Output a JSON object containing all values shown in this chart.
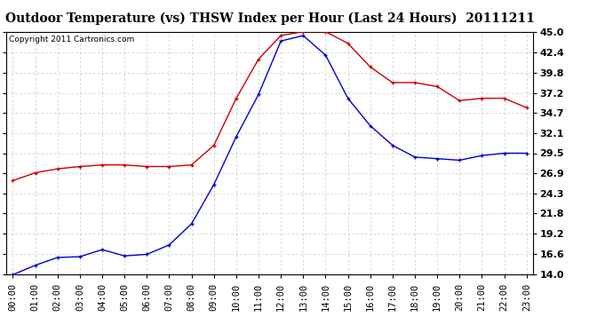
{
  "title": "Outdoor Temperature (vs) THSW Index per Hour (Last 24 Hours)  20111211",
  "copyright": "Copyright 2011 Cartronics.com",
  "hours": [
    "00:00",
    "01:00",
    "02:00",
    "03:00",
    "04:00",
    "05:00",
    "06:00",
    "07:00",
    "08:00",
    "09:00",
    "10:00",
    "11:00",
    "12:00",
    "13:00",
    "14:00",
    "15:00",
    "16:00",
    "17:00",
    "18:00",
    "19:00",
    "20:00",
    "21:00",
    "22:00",
    "23:00"
  ],
  "temp_blue": [
    14.0,
    15.2,
    16.2,
    16.3,
    17.2,
    16.4,
    16.6,
    17.8,
    20.5,
    25.5,
    31.6,
    37.0,
    43.8,
    44.5,
    42.0,
    36.5,
    33.0,
    30.5,
    29.0,
    28.8,
    28.6,
    29.2,
    29.5,
    29.5
  ],
  "thsw_red": [
    26.0,
    27.0,
    27.5,
    27.8,
    28.0,
    28.0,
    27.8,
    27.8,
    28.0,
    30.5,
    36.5,
    41.5,
    44.5,
    45.0,
    45.0,
    43.5,
    40.5,
    38.5,
    38.5,
    38.0,
    36.2,
    36.5,
    36.5,
    35.3
  ],
  "ylim": [
    14.0,
    45.0
  ],
  "yticks": [
    14.0,
    16.6,
    19.2,
    21.8,
    24.3,
    26.9,
    29.5,
    32.1,
    34.7,
    37.2,
    39.8,
    42.4,
    45.0
  ],
  "blue_color": "#0000cc",
  "red_color": "#cc0000",
  "grid_color": "#c8c8c8",
  "bg_color": "#ffffff",
  "title_fontsize": 10,
  "tick_fontsize": 7.5,
  "copyright_fontsize": 6.5,
  "marker_size": 3.5,
  "line_width": 1.0
}
